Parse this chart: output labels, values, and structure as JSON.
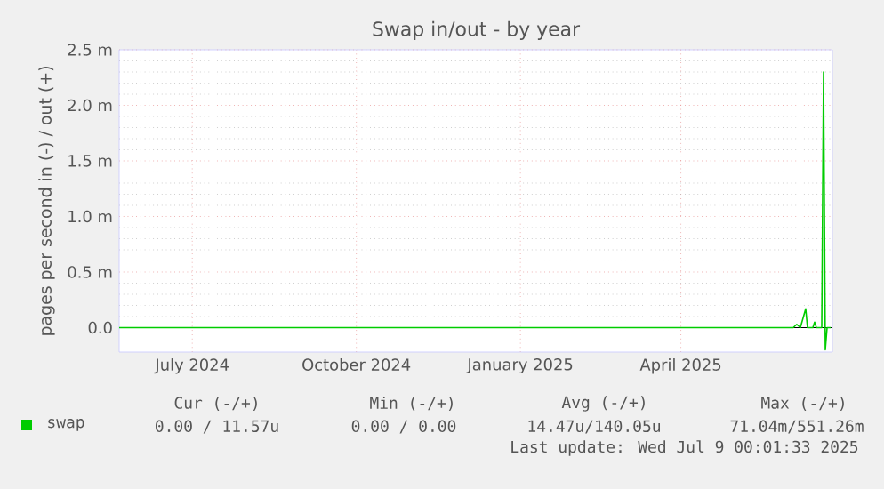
{
  "chart_data": {
    "type": "line",
    "title": "Swap in/out - by year",
    "ylabel": "pages per second in (-) / out (+)",
    "xlim": [
      "2024-06-04",
      "2025-07-09"
    ],
    "xticks": [
      {
        "value": "2024-07-15",
        "label": "July 2024"
      },
      {
        "value": "2024-10-15",
        "label": "October 2024"
      },
      {
        "value": "2025-01-15",
        "label": "January 2025"
      },
      {
        "value": "2025-04-15",
        "label": "April 2025"
      }
    ],
    "ylim": [
      -0.22,
      2.5
    ],
    "yticks": [
      {
        "value": 0,
        "label": "0.0"
      },
      {
        "value": 0.5,
        "label": "0.5 m"
      },
      {
        "value": 1.0,
        "label": "1.0 m"
      },
      {
        "value": 1.5,
        "label": "1.5 m"
      },
      {
        "value": 2.0,
        "label": "2.0 m"
      },
      {
        "value": 2.5,
        "label": "2.5 m"
      }
    ],
    "grid": true,
    "legend": "bottom left",
    "ref_lines": [
      {
        "axis": "y",
        "value": 0,
        "color": "#000000"
      }
    ],
    "series": [
      {
        "name": "swap",
        "color": "#00cc00",
        "x": [
          "2024-06-04",
          "2025-06-17",
          "2025-06-19",
          "2025-06-21",
          "2025-06-24",
          "2025-06-25",
          "2025-06-28",
          "2025-06-29",
          "2025-06-30",
          "2025-07-03",
          "2025-07-04",
          "2025-07-05",
          "2025-07-06",
          "2025-07-08"
        ],
        "values": [
          0,
          0,
          0.03,
          0,
          0.17,
          0,
          0,
          0.05,
          0,
          0,
          2.3,
          -0.2,
          0,
          0
        ]
      }
    ],
    "annotations": [
      "Cur (-/+)",
      "Min (-/+)",
      "Avg (-/+)",
      "Max (-/+)",
      "0.00 / 11.57u",
      "0.00 / 0.00",
      "14.47u/140.05u",
      "71.04m/551.26m",
      "Last update: Wed Jul 9 00:01:33 2025"
    ]
  }
}
